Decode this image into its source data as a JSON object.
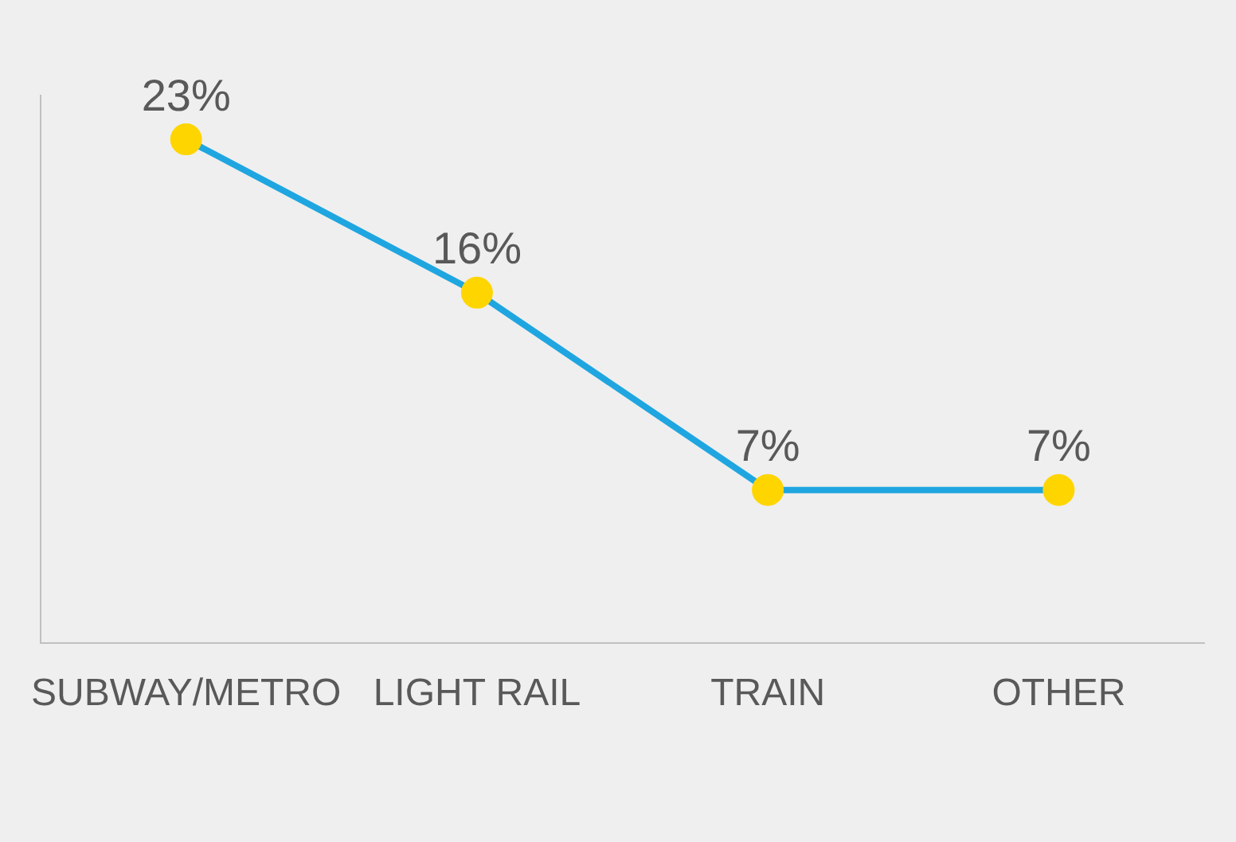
{
  "chart_data": {
    "type": "line",
    "categories": [
      "SUBWAY/METRO",
      "LIGHT RAIL",
      "TRAIN",
      "OTHER"
    ],
    "series": [
      {
        "color": "#1fa6e0",
        "colors": [
          "#ffd500",
          "#ffd500",
          "#ffd500",
          "#ffd500"
        ],
        "values": [
          23,
          16,
          7,
          7
        ],
        "value_labels": [
          "23%",
          "16%",
          "7%",
          "7%"
        ]
      }
    ],
    "marker": "circle",
    "grid": false,
    "legend": false,
    "tick_labels": "x"
  }
}
